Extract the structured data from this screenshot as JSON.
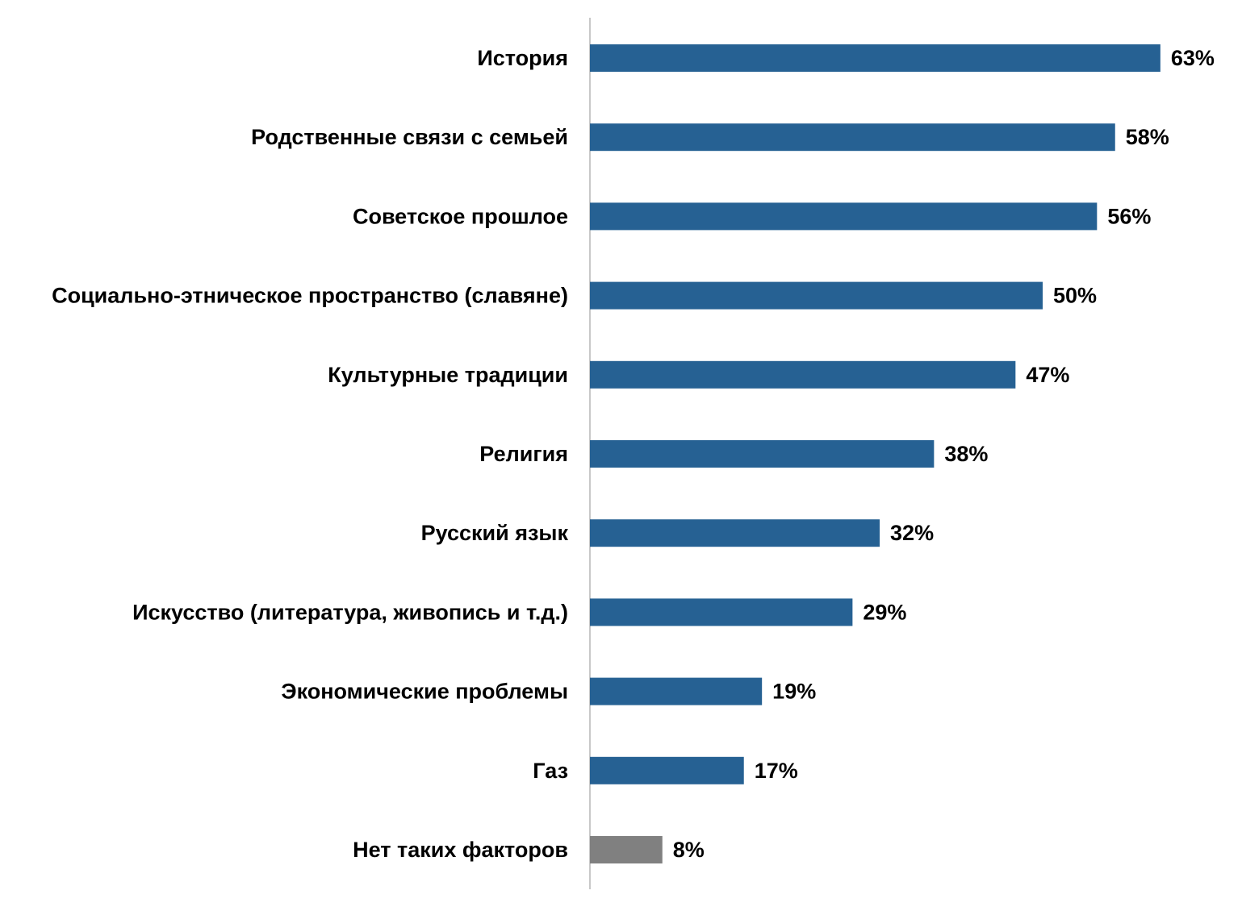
{
  "chart_data": {
    "type": "bar",
    "orientation": "horizontal",
    "categories": [
      "История",
      "Родственные связи с семьей",
      "Советское прошлое",
      "Социально-этническое пространство (славяне)",
      "Культурные традиции",
      "Религия",
      "Русский язык",
      "Искусство (литература, живопись и т.д.)",
      "Экономические проблемы",
      "Газ",
      "Нет таких факторов"
    ],
    "values": [
      63,
      58,
      56,
      50,
      47,
      38,
      32,
      29,
      19,
      17,
      8
    ],
    "value_labels": [
      "63%",
      "58%",
      "56%",
      "50%",
      "47%",
      "38%",
      "32%",
      "29%",
      "19%",
      "17%",
      "8%"
    ],
    "unit": "%",
    "xlim": [
      0,
      63
    ],
    "grid": false,
    "legend": "none",
    "colors": {
      "primary": "#266193",
      "highlight": "#808080",
      "axis": "#c8c8c8"
    },
    "highlight_category": "Нет таких факторов"
  }
}
